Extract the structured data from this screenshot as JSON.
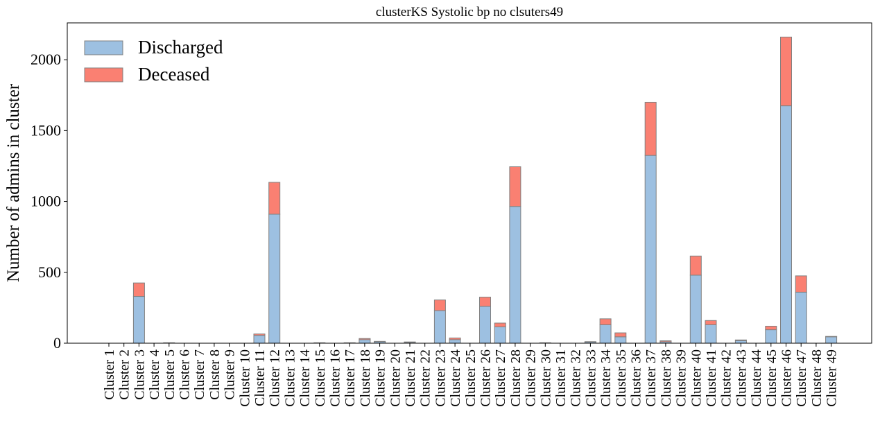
{
  "chart_data": {
    "type": "bar",
    "stacked": true,
    "title": "clusterKS Systolic bp no clsuters49",
    "xlabel": "",
    "ylabel": "Number of admins in cluster",
    "ylim": [
      0,
      2260
    ],
    "yticks": [
      0,
      500,
      1000,
      1500,
      2000
    ],
    "grid": false,
    "legend_position": "top-left",
    "categories": [
      "Cluster 1",
      "Cluster 2",
      "Cluster 3",
      "Cluster 4",
      "Cluster 5",
      "Cluster 6",
      "Cluster 7",
      "Cluster 8",
      "Cluster 9",
      "Cluster 10",
      "Cluster 11",
      "Cluster 12",
      "Cluster 13",
      "Cluster 14",
      "Cluster 15",
      "Cluster 16",
      "Cluster 17",
      "Cluster 18",
      "Cluster 19",
      "Cluster 20",
      "Cluster 21",
      "Cluster 22",
      "Cluster 23",
      "Cluster 24",
      "Cluster 25",
      "Cluster 26",
      "Cluster 27",
      "Cluster 28",
      "Cluster 29",
      "Cluster 30",
      "Cluster 31",
      "Cluster 32",
      "Cluster 33",
      "Cluster 34",
      "Cluster 35",
      "Cluster 36",
      "Cluster 37",
      "Cluster 38",
      "Cluster 39",
      "Cluster 40",
      "Cluster 41",
      "Cluster 42",
      "Cluster 43",
      "Cluster 44",
      "Cluster 45",
      "Cluster 46",
      "Cluster 47",
      "Cluster 48",
      "Cluster 49"
    ],
    "series": [
      {
        "name": "Discharged",
        "color": "#9dc0e1",
        "values": [
          0,
          0,
          330,
          0,
          3,
          0,
          0,
          0,
          0,
          0,
          55,
          910,
          0,
          0,
          3,
          0,
          3,
          25,
          10,
          0,
          6,
          0,
          230,
          25,
          0,
          260,
          115,
          965,
          0,
          3,
          0,
          0,
          8,
          130,
          45,
          0,
          1325,
          10,
          0,
          480,
          130,
          0,
          18,
          0,
          95,
          1675,
          360,
          0,
          45
        ]
      },
      {
        "name": "Deceased",
        "color": "#fa8072",
        "values": [
          0,
          0,
          95,
          0,
          0,
          0,
          0,
          0,
          0,
          0,
          10,
          225,
          0,
          0,
          0,
          0,
          0,
          8,
          3,
          0,
          3,
          0,
          75,
          12,
          0,
          65,
          27,
          280,
          0,
          0,
          0,
          0,
          3,
          42,
          28,
          0,
          375,
          7,
          0,
          135,
          30,
          0,
          5,
          0,
          25,
          485,
          115,
          0,
          3
        ]
      }
    ]
  }
}
